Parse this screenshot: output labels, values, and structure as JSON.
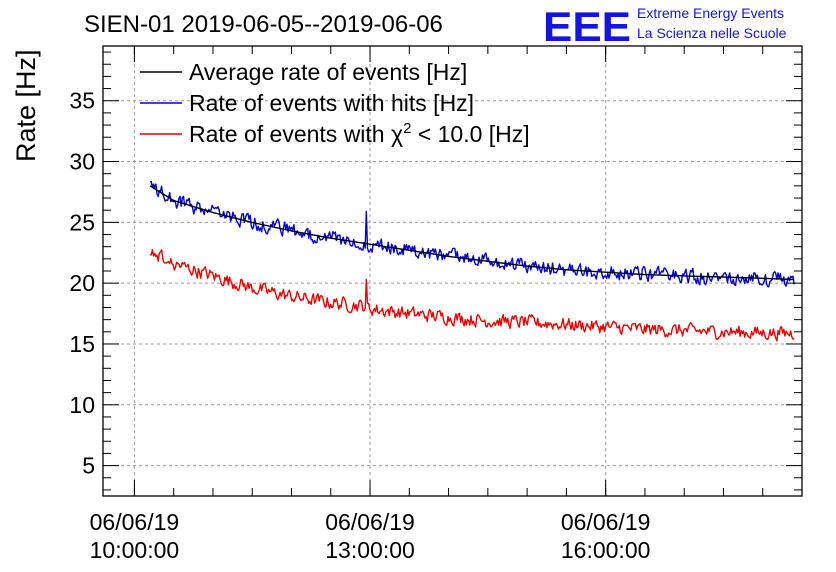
{
  "header": {
    "title": "SIEN-01 2019-06-05--2019-06-06",
    "logo_mark": "EEE",
    "logo_line1": "Extreme Energy Events",
    "logo_line2": "La Scienza nelle Scuole"
  },
  "colors": {
    "average": "#000000",
    "hits": "#0000dd",
    "chi2": "#ee0000",
    "logo": "#1414e6"
  },
  "chart_data": {
    "type": "line",
    "title": "SIEN-01 2019-06-05--2019-06-06",
    "xlabel": "",
    "ylabel": "Rate [Hz]",
    "xlim_hours": [
      9.6,
      18.5
    ],
    "ylim": [
      2.5,
      39.5
    ],
    "grid": true,
    "legend_position": "top-left",
    "yticks": [
      5,
      10,
      15,
      20,
      25,
      30,
      35
    ],
    "xticks": [
      {
        "hour": 10,
        "date": "06/06/19",
        "time": "10:00:00"
      },
      {
        "hour": 13,
        "date": "06/06/19",
        "time": "13:00:00"
      },
      {
        "hour": 16,
        "date": "06/06/19",
        "time": "16:00:00"
      }
    ],
    "legend": {
      "average": "Average rate of events [Hz]",
      "hits": "Rate of events with hits [Hz]",
      "chi2_prefix": "Rate of events with ",
      "chi2_symbol": "χ",
      "chi2_sup": "2",
      "chi2_suffix": " < 10.0 [Hz]"
    },
    "series": [
      {
        "name": "Average rate of events [Hz]",
        "key": "average",
        "x": [
          10.2,
          10.5,
          11.0,
          11.5,
          12.0,
          12.5,
          13.0,
          13.5,
          14.0,
          14.5,
          15.0,
          15.5,
          16.0,
          16.5,
          17.0,
          17.5,
          18.0,
          18.4
        ],
        "y": [
          28.0,
          26.8,
          25.8,
          25.0,
          24.3,
          23.7,
          23.2,
          22.7,
          22.2,
          21.8,
          21.4,
          21.1,
          20.9,
          20.7,
          20.6,
          20.5,
          20.4,
          20.3
        ]
      },
      {
        "name": "Rate of events with hits [Hz]",
        "key": "hits",
        "x": [
          10.2,
          10.5,
          11.0,
          11.5,
          12.0,
          12.5,
          12.95,
          13.0,
          13.5,
          14.0,
          14.5,
          15.0,
          15.5,
          16.0,
          16.5,
          17.0,
          17.5,
          18.0,
          18.4
        ],
        "y": [
          28.0,
          26.8,
          25.8,
          25.0,
          24.3,
          23.7,
          23.3,
          23.2,
          22.7,
          22.2,
          21.8,
          21.4,
          21.1,
          20.9,
          20.7,
          20.6,
          20.5,
          20.4,
          20.3
        ],
        "noise": 0.55,
        "spike": {
          "x": 12.95,
          "y": 25.9
        }
      },
      {
        "name": "Rate of events with χ2 < 10.0 [Hz]",
        "key": "chi2",
        "x": [
          10.2,
          10.5,
          11.0,
          11.5,
          12.0,
          12.5,
          12.95,
          13.0,
          13.5,
          14.0,
          14.5,
          15.0,
          15.5,
          16.0,
          16.5,
          17.0,
          17.5,
          18.0,
          18.4
        ],
        "y": [
          22.6,
          21.6,
          20.6,
          19.6,
          18.9,
          18.4,
          18.1,
          17.9,
          17.5,
          17.2,
          16.9,
          16.8,
          16.6,
          16.4,
          16.2,
          16.1,
          16.0,
          15.9,
          15.9
        ],
        "noise": 0.5,
        "spike": {
          "x": 12.95,
          "y": 20.3
        }
      }
    ]
  }
}
